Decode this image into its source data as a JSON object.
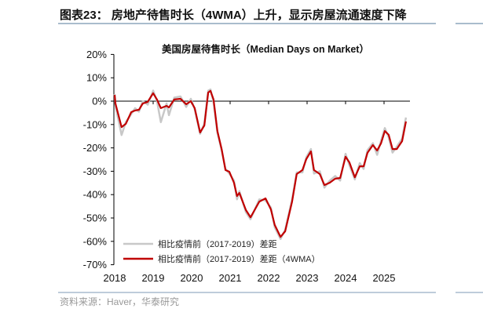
{
  "header": {
    "title": "图表23：  房地产待售时长（4WMA）上升，显示房屋流通速度下降"
  },
  "footer": {
    "source": "资料来源：Haver，华泰研究"
  },
  "colors": {
    "ma": "#c00000",
    "raw": "#c8c8c8",
    "rule": "#a9bccd"
  },
  "chart_data": {
    "type": "line",
    "title": "美国房屋待售时长（Median Days on Market）",
    "xlabel": "",
    "ylabel": "",
    "xlim": [
      2018,
      2025.8
    ],
    "ylim": [
      -70,
      20
    ],
    "x_ticks": [
      "2018",
      "2019",
      "2020",
      "2021",
      "2022",
      "2023",
      "2024",
      "2025"
    ],
    "y_ticks": [
      "20%",
      "10%",
      "0%",
      "-10%",
      "-20%",
      "-30%",
      "-40%",
      "-50%",
      "-60%",
      "-70%"
    ],
    "y_tick_values": [
      20,
      10,
      0,
      -10,
      -20,
      -30,
      -40,
      -50,
      -60,
      -70
    ],
    "legend_position": "bottom-left",
    "grid": false,
    "x": [
      2018.0,
      2018.02,
      2018.18,
      2018.29,
      2018.43,
      2018.53,
      2018.63,
      2018.73,
      2018.86,
      2019.0,
      2019.1,
      2019.2,
      2019.35,
      2019.41,
      2019.55,
      2019.71,
      2019.86,
      2019.98,
      2020.08,
      2020.22,
      2020.33,
      2020.43,
      2020.49,
      2020.57,
      2020.67,
      2020.78,
      2020.88,
      2020.98,
      2021.1,
      2021.18,
      2021.24,
      2021.41,
      2021.53,
      2021.76,
      2021.92,
      2022.06,
      2022.16,
      2022.31,
      2022.43,
      2022.61,
      2022.73,
      2022.88,
      2022.98,
      2023.1,
      2023.18,
      2023.33,
      2023.45,
      2023.59,
      2023.73,
      2023.86,
      2024.0,
      2024.1,
      2024.24,
      2024.37,
      2024.47,
      2024.57,
      2024.71,
      2024.82,
      2024.92,
      2025.02,
      2025.12,
      2025.22,
      2025.33,
      2025.47,
      2025.57
    ],
    "series": [
      {
        "name": "相比疫情前（2017-2019）差距",
        "values": [
          3.0,
          -2.0,
          -14.5,
          -9.0,
          -5.5,
          -3.0,
          -4.5,
          0.0,
          -1.5,
          4.5,
          0.0,
          -9.0,
          -1.0,
          -6.0,
          1.5,
          2.0,
          -2.5,
          1.0,
          -3.5,
          -14.0,
          -9.5,
          4.5,
          5.0,
          -0.5,
          -13.5,
          -21.0,
          -29.0,
          -31.0,
          -34.0,
          -42.0,
          -38.5,
          -47.5,
          -50.5,
          -42.0,
          -42.5,
          -45.5,
          -54.0,
          -59.0,
          -55.0,
          -42.0,
          -30.5,
          -30.5,
          -24.0,
          -20.5,
          -31.0,
          -30.0,
          -37.0,
          -34.0,
          -32.0,
          -34.0,
          -22.5,
          -27.5,
          -33.5,
          -26.5,
          -29.0,
          -21.0,
          -18.0,
          -23.0,
          -17.0,
          -11.5,
          -15.5,
          -22.0,
          -19.5,
          -16.0,
          -7.0
        ]
      },
      {
        "name": "相比疫情前（2017-2019）差距（4WMA）",
        "values": [
          2.7,
          -1.0,
          -11.1,
          -9.7,
          -4.7,
          -4.0,
          -3.7,
          -1.0,
          -0.3,
          3.4,
          0.7,
          -3.0,
          -2.0,
          -2.7,
          0.7,
          1.0,
          -1.3,
          0.0,
          -3.0,
          -13.4,
          -10.4,
          3.7,
          4.4,
          0.7,
          -12.8,
          -20.5,
          -29.5,
          -30.2,
          -34.9,
          -40.6,
          -39.3,
          -46.6,
          -49.7,
          -43.0,
          -41.6,
          -46.3,
          -53.0,
          -58.1,
          -55.7,
          -43.0,
          -31.2,
          -29.5,
          -24.8,
          -21.5,
          -29.5,
          -31.2,
          -35.9,
          -34.9,
          -33.2,
          -32.9,
          -23.8,
          -26.2,
          -32.6,
          -27.9,
          -27.9,
          -22.1,
          -18.8,
          -21.1,
          -18.1,
          -12.8,
          -14.4,
          -20.5,
          -20.5,
          -17.1,
          -8.7
        ]
      }
    ]
  }
}
